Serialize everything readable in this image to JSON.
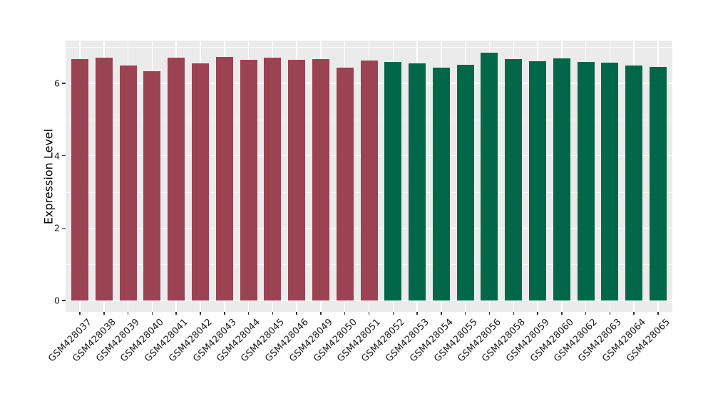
{
  "chart_data": {
    "type": "bar",
    "title": "",
    "xlabel": "",
    "ylabel": "Expression Level",
    "categories": [
      "GSM428037",
      "GSM428038",
      "GSM428039",
      "GSM428040",
      "GSM428041",
      "GSM428042",
      "GSM428043",
      "GSM428044",
      "GSM428045",
      "GSM428046",
      "GSM428049",
      "GSM428050",
      "GSM428051",
      "GSM428052",
      "GSM428053",
      "GSM428054",
      "GSM428055",
      "GSM428056",
      "GSM428058",
      "GSM428059",
      "GSM428060",
      "GSM428062",
      "GSM428063",
      "GSM428064",
      "GSM428065"
    ],
    "values": [
      6.66,
      6.7,
      6.5,
      6.33,
      6.71,
      6.55,
      6.72,
      6.65,
      6.7,
      6.65,
      6.67,
      6.44,
      6.62,
      6.59,
      6.55,
      6.43,
      6.51,
      6.85,
      6.66,
      6.61,
      6.69,
      6.59,
      6.57,
      6.5,
      6.45
    ],
    "group_split_index": 13,
    "colors": {
      "group1": "#9B4353",
      "group2": "#006848"
    },
    "yticks": [
      0,
      2,
      4,
      6
    ],
    "y_minor_gridlines": [
      1,
      3,
      5,
      7
    ],
    "ylim": [
      0,
      7.2
    ],
    "grid": "on",
    "legend": "none",
    "panel_bg": "#EBEBEB",
    "grid_color": "#FFFFFF",
    "axis_text_color": "#1a1a1a"
  }
}
